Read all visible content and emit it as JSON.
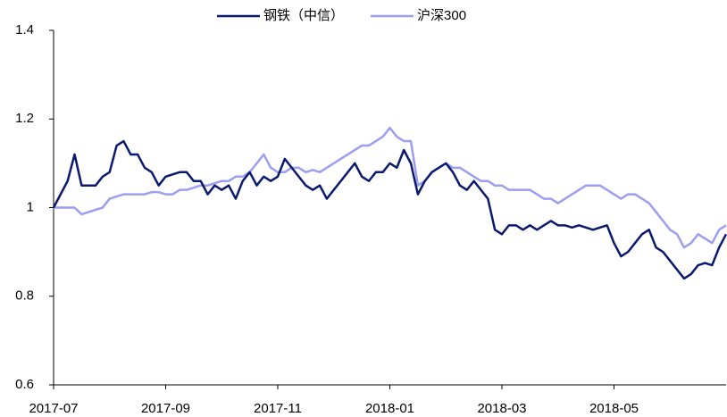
{
  "chart_data": {
    "type": "line",
    "categories": [
      "2017-07",
      null,
      null,
      null,
      null,
      null,
      null,
      null,
      null,
      null,
      null,
      null,
      null,
      null,
      null,
      null,
      "2017-09",
      null,
      null,
      null,
      null,
      null,
      null,
      null,
      null,
      null,
      null,
      null,
      null,
      null,
      null,
      null,
      "2017-11",
      null,
      null,
      null,
      null,
      null,
      null,
      null,
      null,
      null,
      null,
      null,
      null,
      null,
      null,
      null,
      "2018-01",
      null,
      null,
      null,
      null,
      null,
      null,
      null,
      null,
      null,
      null,
      null,
      null,
      null,
      null,
      null,
      "2018-03",
      null,
      null,
      null,
      null,
      null,
      null,
      null,
      null,
      null,
      null,
      null,
      null,
      null,
      null,
      null,
      "2018-05",
      null,
      null,
      null,
      null,
      null,
      null,
      null,
      null,
      null,
      null,
      null,
      null,
      null,
      null,
      null,
      null
    ],
    "series": [
      {
        "name": "钢铁（中信）",
        "color": "#0b1a6e",
        "values": [
          1.0,
          1.03,
          1.06,
          1.12,
          1.05,
          1.05,
          1.05,
          1.07,
          1.08,
          1.14,
          1.15,
          1.12,
          1.12,
          1.09,
          1.08,
          1.05,
          1.07,
          1.075,
          1.08,
          1.08,
          1.06,
          1.06,
          1.03,
          1.05,
          1.04,
          1.05,
          1.02,
          1.06,
          1.08,
          1.05,
          1.07,
          1.06,
          1.07,
          1.11,
          1.09,
          1.07,
          1.05,
          1.04,
          1.05,
          1.02,
          1.04,
          1.06,
          1.08,
          1.1,
          1.07,
          1.06,
          1.08,
          1.08,
          1.1,
          1.09,
          1.13,
          1.1,
          1.03,
          1.06,
          1.08,
          1.09,
          1.1,
          1.08,
          1.05,
          1.04,
          1.06,
          1.04,
          1.02,
          0.95,
          0.94,
          0.96,
          0.96,
          0.95,
          0.96,
          0.95,
          0.96,
          0.97,
          0.96,
          0.96,
          0.955,
          0.96,
          0.955,
          0.95,
          0.955,
          0.96,
          0.92,
          0.89,
          0.9,
          0.92,
          0.94,
          0.95,
          0.91,
          0.9,
          0.88,
          0.86,
          0.84,
          0.85,
          0.87,
          0.875,
          0.87,
          0.91,
          0.94
        ]
      },
      {
        "name": "沪深300",
        "color": "#9c9ef0",
        "values": [
          1.0,
          1.0,
          1.0,
          1.0,
          0.985,
          0.99,
          0.995,
          1.0,
          1.02,
          1.025,
          1.03,
          1.03,
          1.03,
          1.03,
          1.035,
          1.035,
          1.03,
          1.03,
          1.04,
          1.04,
          1.045,
          1.05,
          1.05,
          1.055,
          1.06,
          1.06,
          1.07,
          1.07,
          1.08,
          1.1,
          1.12,
          1.09,
          1.08,
          1.08,
          1.09,
          1.09,
          1.08,
          1.085,
          1.08,
          1.09,
          1.1,
          1.11,
          1.12,
          1.13,
          1.14,
          1.14,
          1.15,
          1.16,
          1.18,
          1.16,
          1.15,
          1.15,
          1.05,
          1.06,
          1.08,
          1.09,
          1.1,
          1.09,
          1.09,
          1.08,
          1.07,
          1.06,
          1.06,
          1.05,
          1.05,
          1.04,
          1.04,
          1.04,
          1.04,
          1.03,
          1.02,
          1.02,
          1.01,
          1.02,
          1.03,
          1.04,
          1.05,
          1.05,
          1.05,
          1.04,
          1.03,
          1.02,
          1.03,
          1.03,
          1.02,
          1.01,
          0.99,
          0.97,
          0.95,
          0.94,
          0.91,
          0.92,
          0.94,
          0.93,
          0.92,
          0.95,
          0.96
        ]
      }
    ],
    "ylim": [
      0.6,
      1.4
    ],
    "yticks": [
      0.6,
      0.8,
      1,
      1.2,
      1.4
    ],
    "grid": false,
    "legend": "top"
  }
}
